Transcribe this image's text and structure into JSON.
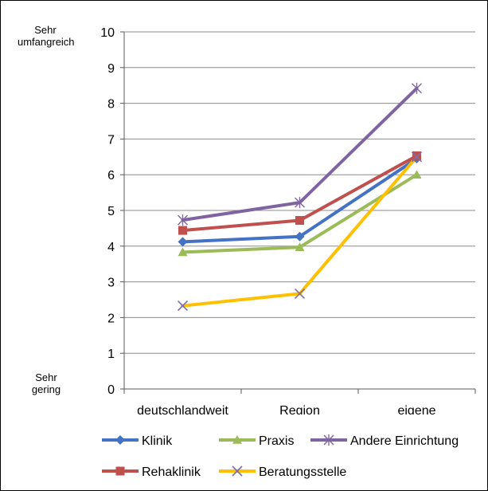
{
  "chart_data": {
    "type": "line",
    "title": "",
    "xlabel": "",
    "ylabel": "",
    "categories": [
      "deutschlandweit",
      "Region",
      "eigene Einricht"
    ],
    "ylim": [
      0,
      10
    ],
    "yticks": [
      "0",
      "1",
      "2",
      "3",
      "4",
      "5",
      "6",
      "7",
      "8",
      "9",
      "10"
    ],
    "y_annotations": {
      "top": [
        "Sehr",
        "umfangreich"
      ],
      "bottom": [
        "Sehr",
        "gering"
      ]
    },
    "grid": true,
    "legend_position": "bottom",
    "series": [
      {
        "name": "Klinik",
        "values": [
          4.12,
          4.27,
          6.45
        ],
        "color": "#4472C4",
        "marker": "diamond"
      },
      {
        "name": "Praxis",
        "values": [
          3.83,
          3.97,
          6.0
        ],
        "color": "#9BBB59",
        "marker": "triangle"
      },
      {
        "name": "Andere Einrichtung",
        "values": [
          4.73,
          5.22,
          8.42
        ],
        "color": "#8064A2",
        "marker": "star"
      },
      {
        "name": "Rehaklinik",
        "values": [
          4.44,
          4.72,
          6.53
        ],
        "color": "#C0504D",
        "marker": "square"
      },
      {
        "name": "Beratungsstelle",
        "values": [
          2.33,
          2.67,
          6.5
        ],
        "color": "#FFC000",
        "marker": "x"
      }
    ]
  }
}
